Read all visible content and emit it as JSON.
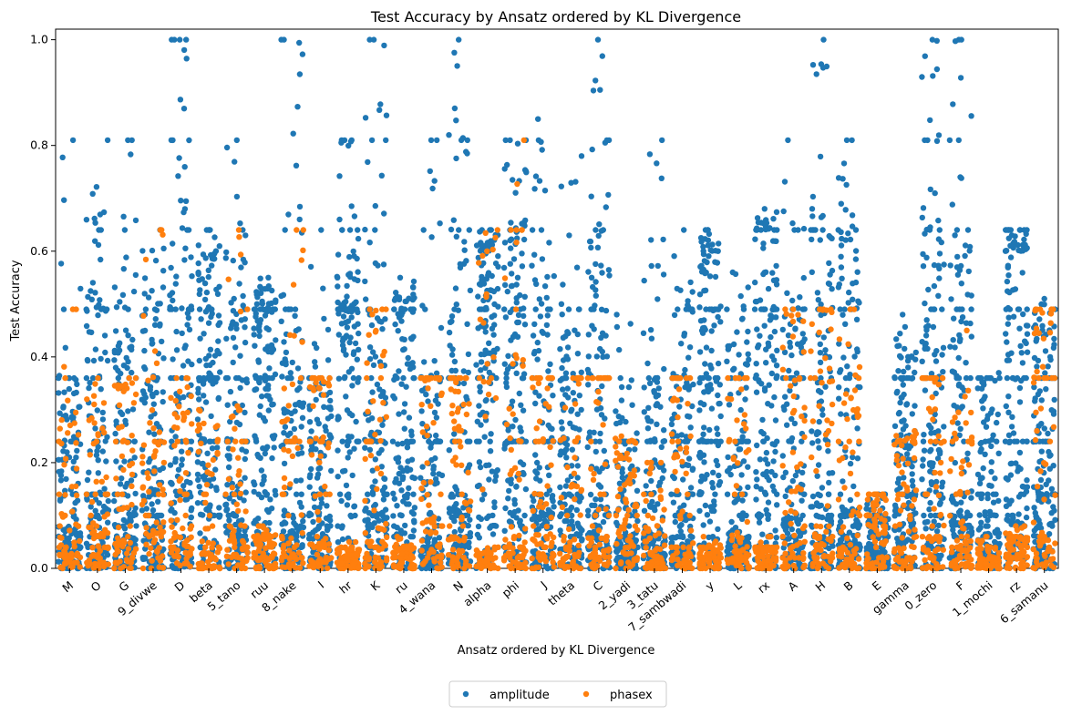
{
  "chart_data": {
    "type": "scatter",
    "subtype": "strip",
    "title": "Test Accuracy by Ansatz ordered by KL Divergence",
    "xlabel": "Ansatz ordered by KL Divergence",
    "ylabel": "Test Accuracy",
    "ylim": [
      0.0,
      1.02
    ],
    "yticks": [
      "0.0",
      "0.2",
      "0.4",
      "0.6",
      "0.8",
      "1.0"
    ],
    "categories": [
      "M",
      "O",
      "G",
      "9_divwe",
      "D",
      "beta",
      "5_tano",
      "ruu",
      "8_nake",
      "I",
      "hr",
      "K",
      "ru",
      "4_wana",
      "N",
      "alpha",
      "phi",
      "J",
      "theta",
      "C",
      "2_yadi",
      "3_tatu",
      "7_sambwadi",
      "y",
      "L",
      "rx",
      "A",
      "H",
      "B",
      "E",
      "gamma",
      "0_zero",
      "F",
      "1_mochi",
      "rz",
      "6_samanu"
    ],
    "series": [
      {
        "name": "amplitude",
        "color": "#1f77b4",
        "median": [
          0.08,
          0.14,
          0.12,
          0.16,
          0.18,
          0.26,
          0.14,
          0.3,
          0.12,
          0.12,
          0.4,
          0.18,
          0.2,
          0.06,
          0.14,
          0.36,
          0.3,
          0.14,
          0.14,
          0.12,
          0.06,
          0.08,
          0.1,
          0.28,
          0.06,
          0.34,
          0.1,
          0.14,
          0.12,
          0.04,
          0.18,
          0.3,
          0.14,
          0.08,
          0.3,
          0.16
        ],
        "p90": [
          0.36,
          0.5,
          0.48,
          0.46,
          0.6,
          0.55,
          0.5,
          0.5,
          0.48,
          0.35,
          0.56,
          0.5,
          0.5,
          0.36,
          0.64,
          0.6,
          0.64,
          0.5,
          0.45,
          0.6,
          0.28,
          0.36,
          0.4,
          0.6,
          0.42,
          0.64,
          0.5,
          0.62,
          0.62,
          0.1,
          0.4,
          0.64,
          0.6,
          0.32,
          0.6,
          0.45
        ],
        "max": [
          0.81,
          0.81,
          0.81,
          0.64,
          1.0,
          0.64,
          0.81,
          0.55,
          1.0,
          0.64,
          0.81,
          1.0,
          0.55,
          0.81,
          1.0,
          0.64,
          0.81,
          0.85,
          0.78,
          1.0,
          0.48,
          0.81,
          0.64,
          0.64,
          0.56,
          0.68,
          0.81,
          1.0,
          0.81,
          0.14,
          0.48,
          1.0,
          1.0,
          0.37,
          0.64,
          0.51
        ]
      },
      {
        "name": "phasex",
        "color": "#ff7f0e",
        "median": [
          0.06,
          0.08,
          0.06,
          0.08,
          0.08,
          0.04,
          0.06,
          0.03,
          0.06,
          0.05,
          0.02,
          0.08,
          0.02,
          0.1,
          0.06,
          0.04,
          0.06,
          0.08,
          0.06,
          0.06,
          0.1,
          0.04,
          0.04,
          0.02,
          0.06,
          0.03,
          0.06,
          0.08,
          0.04,
          0.06,
          0.04,
          0.06,
          0.06,
          0.02,
          0.04,
          0.06
        ],
        "p90": [
          0.3,
          0.28,
          0.34,
          0.3,
          0.3,
          0.26,
          0.3,
          0.06,
          0.36,
          0.34,
          0.04,
          0.48,
          0.04,
          0.36,
          0.36,
          0.6,
          0.6,
          0.36,
          0.36,
          0.36,
          0.24,
          0.2,
          0.36,
          0.04,
          0.36,
          0.04,
          0.36,
          0.48,
          0.36,
          0.14,
          0.24,
          0.36,
          0.3,
          0.04,
          0.06,
          0.48
        ],
        "max": [
          0.49,
          0.36,
          0.36,
          0.64,
          0.36,
          0.3,
          0.64,
          0.08,
          0.64,
          0.36,
          0.05,
          0.49,
          0.06,
          0.36,
          0.36,
          0.64,
          0.81,
          0.36,
          0.36,
          0.36,
          0.25,
          0.2,
          0.36,
          0.06,
          0.36,
          0.06,
          0.49,
          0.49,
          0.49,
          0.14,
          0.26,
          0.36,
          0.45,
          0.06,
          0.08,
          0.49
        ]
      }
    ],
    "legend": {
      "placement": "bottom-center",
      "columns": 2
    },
    "grid": false
  }
}
